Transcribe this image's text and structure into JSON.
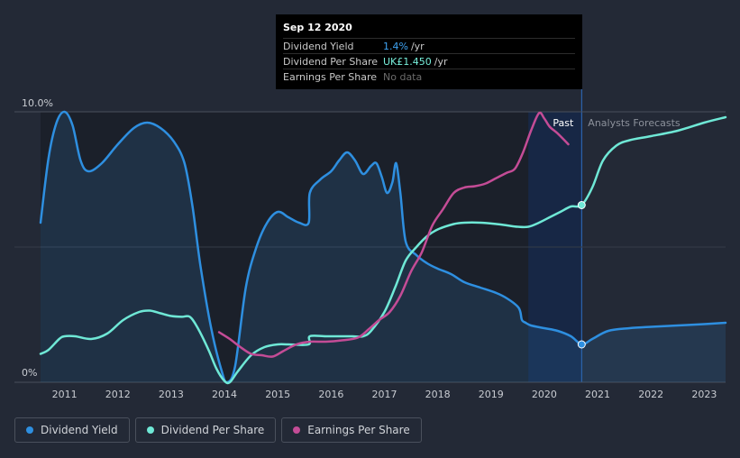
{
  "tooltip": {
    "date": "Sep 12 2020",
    "rows": [
      {
        "label": "Dividend Yield",
        "value": "1.4%",
        "unit": "/yr"
      },
      {
        "label": "Dividend Per Share",
        "value": "UK£1.450",
        "unit": "/yr"
      },
      {
        "label": "Earnings Per Share",
        "value": "No data",
        "unit": ""
      }
    ]
  },
  "labels": {
    "past": "Past",
    "forecast": "Analysts Forecasts"
  },
  "legend": [
    {
      "label": "Dividend Yield",
      "color": "#2e8fe0"
    },
    {
      "label": "Dividend Per Share",
      "color": "#6fe8d6"
    },
    {
      "label": "Earnings Per Share",
      "color": "#c44c96"
    }
  ],
  "colors": {
    "background": "#232936",
    "yield": "#2e8fe0",
    "dps": "#6fe8d6",
    "eps": "#c44c96"
  },
  "chart_data": {
    "type": "line",
    "title": "",
    "xlabel": "",
    "ylabel": "",
    "xlim": [
      2010.55,
      2023.4
    ],
    "ylim": [
      0,
      10
    ],
    "y_tick_labels": [
      "10.0%",
      "0%"
    ],
    "x_ticks": [
      2011,
      2012,
      2013,
      2014,
      2015,
      2016,
      2017,
      2018,
      2019,
      2020,
      2021,
      2022,
      2023
    ],
    "x_tick_labels": [
      "2011",
      "2012",
      "2013",
      "2014",
      "2015",
      "2016",
      "2017",
      "2018",
      "2019",
      "2020",
      "2021",
      "2022",
      "2023"
    ],
    "past_region": [
      2019.7,
      2020.7
    ],
    "forecast_start": 2020.7,
    "series": [
      {
        "name": "Dividend Yield",
        "points": [
          [
            2010.55,
            5.9
          ],
          [
            2010.7,
            8.3
          ],
          [
            2010.85,
            9.6
          ],
          [
            2011.0,
            10.0
          ],
          [
            2011.15,
            9.5
          ],
          [
            2011.3,
            8.2
          ],
          [
            2011.45,
            7.8
          ],
          [
            2011.7,
            8.1
          ],
          [
            2012.0,
            8.8
          ],
          [
            2012.3,
            9.4
          ],
          [
            2012.55,
            9.6
          ],
          [
            2012.8,
            9.4
          ],
          [
            2013.05,
            8.9
          ],
          [
            2013.25,
            8.1
          ],
          [
            2013.4,
            6.5
          ],
          [
            2013.55,
            4.3
          ],
          [
            2013.75,
            2.0
          ],
          [
            2013.95,
            0.4
          ],
          [
            2014.05,
            0.0
          ],
          [
            2014.2,
            0.6
          ],
          [
            2014.4,
            3.5
          ],
          [
            2014.6,
            5.0
          ],
          [
            2014.8,
            5.9
          ],
          [
            2015.0,
            6.3
          ],
          [
            2015.2,
            6.1
          ],
          [
            2015.4,
            5.9
          ],
          [
            2015.58,
            5.9
          ],
          [
            2015.6,
            7.0
          ],
          [
            2015.8,
            7.5
          ],
          [
            2016.0,
            7.8
          ],
          [
            2016.15,
            8.2
          ],
          [
            2016.3,
            8.5
          ],
          [
            2016.45,
            8.2
          ],
          [
            2016.6,
            7.7
          ],
          [
            2016.75,
            8.0
          ],
          [
            2016.85,
            8.1
          ],
          [
            2016.95,
            7.6
          ],
          [
            2017.05,
            7.0
          ],
          [
            2017.15,
            7.4
          ],
          [
            2017.22,
            8.1
          ],
          [
            2017.3,
            7.0
          ],
          [
            2017.4,
            5.2
          ],
          [
            2017.6,
            4.7
          ],
          [
            2017.8,
            4.4
          ],
          [
            2018.0,
            4.2
          ],
          [
            2018.25,
            4.0
          ],
          [
            2018.5,
            3.7
          ],
          [
            2018.8,
            3.5
          ],
          [
            2019.1,
            3.3
          ],
          [
            2019.3,
            3.1
          ],
          [
            2019.5,
            2.8
          ],
          [
            2019.55,
            2.6
          ],
          [
            2019.58,
            2.3
          ],
          [
            2019.65,
            2.2
          ],
          [
            2019.75,
            2.1
          ],
          [
            2020.0,
            2.0
          ],
          [
            2020.25,
            1.9
          ],
          [
            2020.5,
            1.7
          ],
          [
            2020.7,
            1.4
          ],
          [
            2020.9,
            1.6
          ],
          [
            2021.2,
            1.9
          ],
          [
            2021.6,
            2.0
          ],
          [
            2022.0,
            2.05
          ],
          [
            2022.5,
            2.1
          ],
          [
            2023.0,
            2.15
          ],
          [
            2023.4,
            2.2
          ]
        ]
      },
      {
        "name": "Dividend Per Share",
        "points": [
          [
            2010.55,
            1.05
          ],
          [
            2010.7,
            1.2
          ],
          [
            2010.9,
            1.6
          ],
          [
            2011.0,
            1.7
          ],
          [
            2011.2,
            1.7
          ],
          [
            2011.5,
            1.6
          ],
          [
            2011.8,
            1.8
          ],
          [
            2012.1,
            2.3
          ],
          [
            2012.4,
            2.6
          ],
          [
            2012.6,
            2.65
          ],
          [
            2012.8,
            2.55
          ],
          [
            2013.0,
            2.45
          ],
          [
            2013.2,
            2.42
          ],
          [
            2013.35,
            2.42
          ],
          [
            2013.5,
            2.0
          ],
          [
            2013.7,
            1.2
          ],
          [
            2013.85,
            0.5
          ],
          [
            2014.0,
            0.05
          ],
          [
            2014.1,
            0.0
          ],
          [
            2014.25,
            0.4
          ],
          [
            2014.5,
            1.0
          ],
          [
            2014.75,
            1.3
          ],
          [
            2015.0,
            1.4
          ],
          [
            2015.2,
            1.4
          ],
          [
            2015.58,
            1.4
          ],
          [
            2015.6,
            1.7
          ],
          [
            2015.9,
            1.7
          ],
          [
            2016.2,
            1.7
          ],
          [
            2016.4,
            1.7
          ],
          [
            2016.6,
            1.7
          ],
          [
            2016.75,
            1.9
          ],
          [
            2017.0,
            2.6
          ],
          [
            2017.2,
            3.5
          ],
          [
            2017.4,
            4.5
          ],
          [
            2017.6,
            5.0
          ],
          [
            2017.8,
            5.4
          ],
          [
            2018.0,
            5.65
          ],
          [
            2018.3,
            5.85
          ],
          [
            2018.5,
            5.9
          ],
          [
            2018.8,
            5.9
          ],
          [
            2019.1,
            5.85
          ],
          [
            2019.3,
            5.8
          ],
          [
            2019.5,
            5.75
          ],
          [
            2019.7,
            5.75
          ],
          [
            2019.9,
            5.9
          ],
          [
            2020.1,
            6.1
          ],
          [
            2020.3,
            6.3
          ],
          [
            2020.5,
            6.5
          ],
          [
            2020.7,
            6.55
          ],
          [
            2020.9,
            7.2
          ],
          [
            2021.1,
            8.2
          ],
          [
            2021.35,
            8.75
          ],
          [
            2021.6,
            8.95
          ],
          [
            2022.0,
            9.1
          ],
          [
            2022.5,
            9.3
          ],
          [
            2023.0,
            9.6
          ],
          [
            2023.4,
            9.8
          ]
        ]
      },
      {
        "name": "Earnings Per Share",
        "points": [
          [
            2013.9,
            1.85
          ],
          [
            2014.1,
            1.6
          ],
          [
            2014.3,
            1.3
          ],
          [
            2014.5,
            1.05
          ],
          [
            2014.7,
            1.0
          ],
          [
            2014.9,
            0.95
          ],
          [
            2015.1,
            1.15
          ],
          [
            2015.35,
            1.4
          ],
          [
            2015.6,
            1.5
          ],
          [
            2015.9,
            1.5
          ],
          [
            2016.2,
            1.55
          ],
          [
            2016.5,
            1.65
          ],
          [
            2016.7,
            1.95
          ],
          [
            2016.9,
            2.3
          ],
          [
            2017.1,
            2.6
          ],
          [
            2017.3,
            3.2
          ],
          [
            2017.5,
            4.1
          ],
          [
            2017.7,
            4.8
          ],
          [
            2017.9,
            5.8
          ],
          [
            2018.1,
            6.4
          ],
          [
            2018.3,
            7.0
          ],
          [
            2018.5,
            7.2
          ],
          [
            2018.7,
            7.25
          ],
          [
            2018.9,
            7.35
          ],
          [
            2019.1,
            7.55
          ],
          [
            2019.3,
            7.75
          ],
          [
            2019.45,
            7.9
          ],
          [
            2019.6,
            8.5
          ],
          [
            2019.75,
            9.3
          ],
          [
            2019.9,
            9.95
          ],
          [
            2020.0,
            9.75
          ],
          [
            2020.1,
            9.45
          ],
          [
            2020.25,
            9.2
          ],
          [
            2020.45,
            8.8
          ]
        ]
      }
    ],
    "markers": [
      {
        "series": "Dividend Yield",
        "x": 2020.7,
        "y": 1.4
      },
      {
        "series": "Dividend Per Share",
        "x": 2020.7,
        "y": 6.55
      }
    ]
  }
}
